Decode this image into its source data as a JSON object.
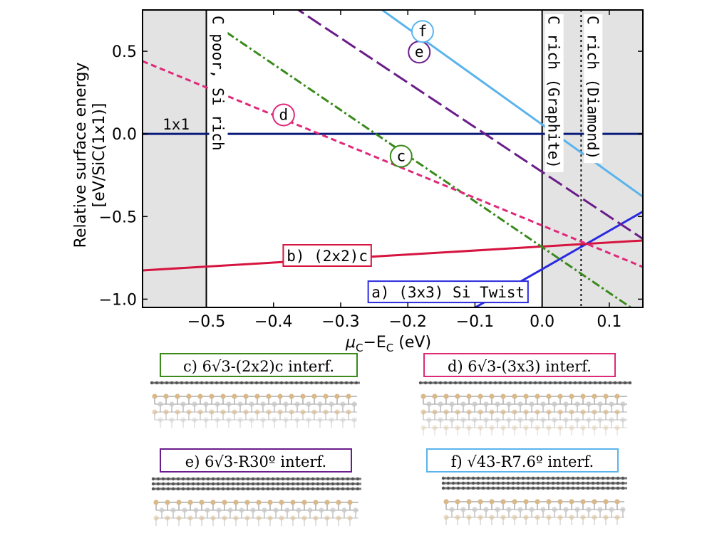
{
  "chart_data": {
    "type": "line",
    "xlabel": "μC−EC (eV)",
    "ylabel_line1": "Relative surface energy",
    "ylabel_line2": "[eV/SiC(1x1)]",
    "xlim": [
      -0.595,
      0.15
    ],
    "ylim": [
      -1.05,
      0.75
    ],
    "x_ticks": [
      {
        "value": -0.5,
        "label": "−0.5"
      },
      {
        "value": -0.4,
        "label": "−0.4"
      },
      {
        "value": -0.3,
        "label": "−0.3"
      },
      {
        "value": -0.2,
        "label": "−0.2"
      },
      {
        "value": -0.1,
        "label": "−0.1"
      },
      {
        "value": 0.0,
        "label": "0.0"
      },
      {
        "value": 0.1,
        "label": "0.1"
      }
    ],
    "y_ticks": [
      {
        "value": 0.5,
        "label": "0.5"
      },
      {
        "value": 0.0,
        "label": "0.0"
      },
      {
        "value": -0.5,
        "label": "−0.5"
      },
      {
        "value": -1.0,
        "label": "−1.0"
      }
    ],
    "shaded_regions": [
      {
        "x": [
          -0.595,
          -0.5
        ],
        "color": "#e3e3e3"
      },
      {
        "x": [
          0.0,
          0.15
        ],
        "color": "#e3e3e3"
      }
    ],
    "vertical_lines": [
      {
        "x": -0.5,
        "style": "solid",
        "label": "C poor, Si rich"
      },
      {
        "x": 0.0,
        "style": "solid",
        "label": "C rich (Graphite)"
      },
      {
        "x": 0.058,
        "style": "dotted",
        "label": "C rich (Diamond)"
      }
    ],
    "series": [
      {
        "key": "1x1",
        "name": "1x1",
        "color": "#0a1a78",
        "dash": "solid",
        "x": [
          -0.595,
          0.15
        ],
        "y": [
          0.0,
          0.0
        ],
        "label_style": "plain",
        "label_x": -0.545,
        "label_y": 0.0
      },
      {
        "key": "a",
        "name": "a) (3x3) Si Twist",
        "color": "#2a2ae0",
        "dash": "solid",
        "x": [
          -0.25,
          0.15
        ],
        "y": [
          -1.4,
          -0.47
        ],
        "label_style": "box",
        "label_x": -0.14,
        "label_y": -0.96
      },
      {
        "key": "b",
        "name": "b) (2x2)c",
        "color": "#d6143f",
        "dash": "solid",
        "x": [
          -0.595,
          0.15
        ],
        "y": [
          -0.826,
          -0.645
        ],
        "label_style": "box",
        "label_x": -0.32,
        "label_y": -0.74
      },
      {
        "key": "c",
        "name": "c",
        "color": "#3a8a1c",
        "dash": "dashdot",
        "x": [
          -0.49,
          0.15
        ],
        "y": [
          0.67,
          -1.1
        ],
        "label_style": "circle",
        "label_x": -0.21,
        "label_y": -0.135
      },
      {
        "key": "d",
        "name": "d",
        "color": "#e0287a",
        "dash": "dashed",
        "x": [
          -0.595,
          0.15
        ],
        "y": [
          0.44,
          -0.805
        ],
        "label_style": "circle",
        "label_x": -0.385,
        "label_y": 0.115
      },
      {
        "key": "e",
        "name": "e",
        "color": "#6a1c8a",
        "dash": "longdash",
        "x": [
          -0.4,
          0.15
        ],
        "y": [
          0.85,
          -0.635
        ],
        "label_style": "circle",
        "label_x": -0.183,
        "label_y": 0.495
      },
      {
        "key": "f",
        "name": "f",
        "color": "#5ab4ec",
        "dash": "solid",
        "x": [
          -0.3,
          0.15
        ],
        "y": [
          0.93,
          -0.38
        ],
        "label_style": "circle",
        "label_x": -0.178,
        "label_y": 0.62
      }
    ]
  },
  "panels": [
    {
      "key": "c",
      "label": "c) 6√3-(2x2)c interf.",
      "color": "#3a8a1c"
    },
    {
      "key": "d",
      "label": "d) 6√3-(3x3) interf.",
      "color": "#e0287a"
    },
    {
      "key": "e",
      "label": "e) 6√3-R30º interf.",
      "color": "#6a1c8a"
    },
    {
      "key": "f",
      "label": "f) √43-R7.6º interf.",
      "color": "#5ab4ec"
    }
  ],
  "atom_colors": {
    "carbon": "#7a7a7a",
    "silicon": "#d9b98a"
  }
}
